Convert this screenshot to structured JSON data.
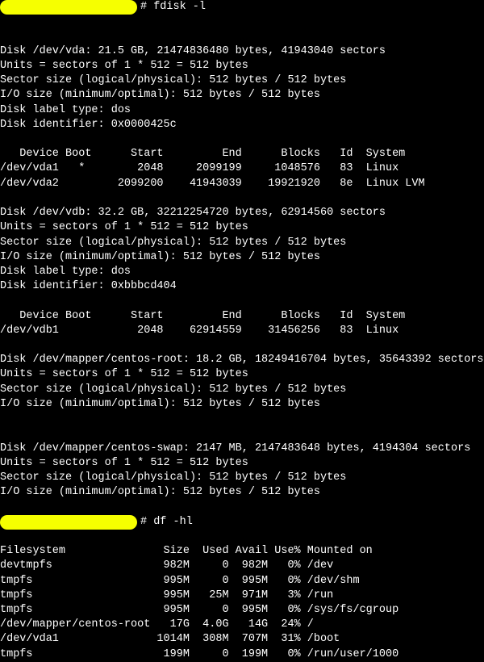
{
  "prompt1": "# fdisk -l",
  "vda": {
    "header": "Disk /dev/vda: 21.5 GB, 21474836480 bytes, 41943040 sectors",
    "units": "Units = sectors of 1 * 512 = 512 bytes",
    "sector": "Sector size (logical/physical): 512 bytes / 512 bytes",
    "io": "I/O size (minimum/optimal): 512 bytes / 512 bytes",
    "label": "Disk label type: dos",
    "ident": "Disk identifier: 0x0000425c",
    "th": "   Device Boot      Start         End      Blocks   Id  System",
    "r1": "/dev/vda1   *        2048     2099199     1048576   83  Linux",
    "r2": "/dev/vda2         2099200    41943039    19921920   8e  Linux LVM"
  },
  "vdb": {
    "header": "Disk /dev/vdb: 32.2 GB, 32212254720 bytes, 62914560 sectors",
    "units": "Units = sectors of 1 * 512 = 512 bytes",
    "sector": "Sector size (logical/physical): 512 bytes / 512 bytes",
    "io": "I/O size (minimum/optimal): 512 bytes / 512 bytes",
    "label": "Disk label type: dos",
    "ident": "Disk identifier: 0xbbbcd404",
    "th": "   Device Boot      Start         End      Blocks   Id  System",
    "r1": "/dev/vdb1            2048    62914559    31456256   83  Linux"
  },
  "root": {
    "header": "Disk /dev/mapper/centos-root: 18.2 GB, 18249416704 bytes, 35643392 sectors",
    "units": "Units = sectors of 1 * 512 = 512 bytes",
    "sector": "Sector size (logical/physical): 512 bytes / 512 bytes",
    "io": "I/O size (minimum/optimal): 512 bytes / 512 bytes"
  },
  "swap": {
    "header": "Disk /dev/mapper/centos-swap: 2147 MB, 2147483648 bytes, 4194304 sectors",
    "units": "Units = sectors of 1 * 512 = 512 bytes",
    "sector": "Sector size (logical/physical): 512 bytes / 512 bytes",
    "io": "I/O size (minimum/optimal): 512 bytes / 512 bytes"
  },
  "prompt2": "# df -hl",
  "df": {
    "th": "Filesystem               Size  Used Avail Use% Mounted on",
    "r1": "devtmpfs                 982M     0  982M   0% /dev",
    "r2": "tmpfs                    995M     0  995M   0% /dev/shm",
    "r3": "tmpfs                    995M   25M  971M   3% /run",
    "r4": "tmpfs                    995M     0  995M   0% /sys/fs/cgroup",
    "r5": "/dev/mapper/centos-root   17G  4.0G   14G  24% /",
    "r6": "/dev/vda1               1014M  308M  707M  31% /boot",
    "r7": "tmpfs                    199M     0  199M   0% /run/user/1000"
  }
}
